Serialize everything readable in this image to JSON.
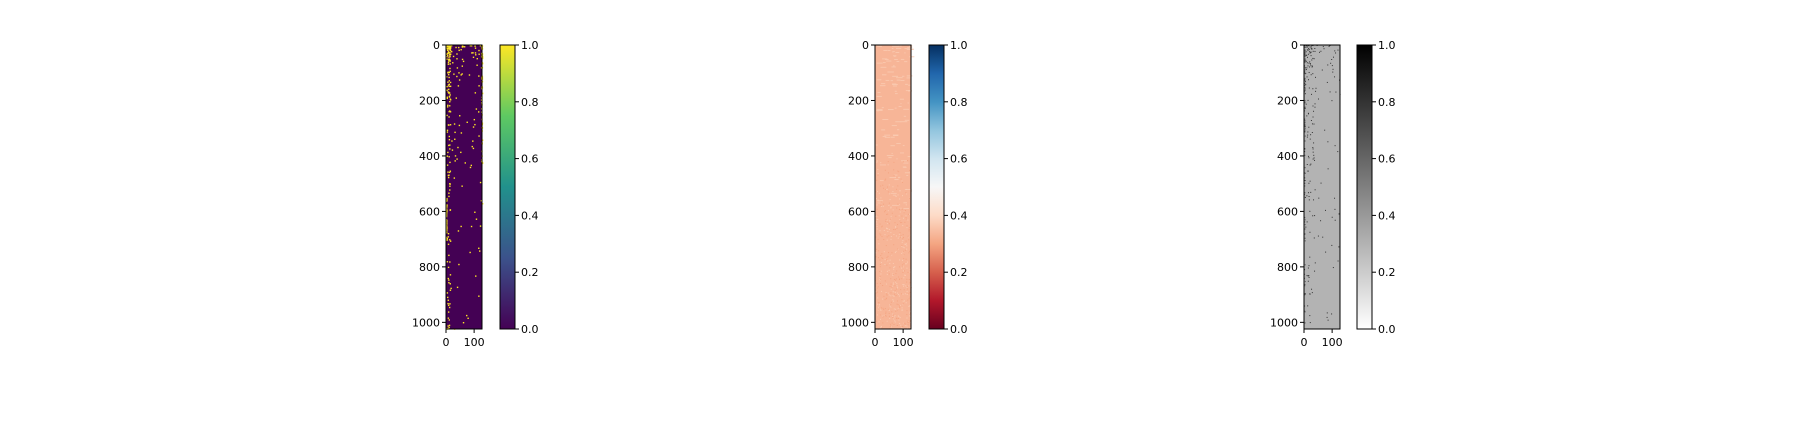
{
  "chart_data": [
    {
      "type": "heatmap",
      "colormap": "viridis",
      "colormap_stops": [
        "#440154",
        "#3b528b",
        "#21918c",
        "#5ec962",
        "#fde725"
      ],
      "background_value": 0.0,
      "dot_value": 1.0,
      "x_ticks": [
        "0",
        "100"
      ],
      "x_tick_values": [
        0,
        100
      ],
      "xlim": [
        0,
        128
      ],
      "y_ticks": [
        "0",
        "200",
        "400",
        "600",
        "800",
        "1000"
      ],
      "y_tick_values": [
        0,
        200,
        400,
        600,
        800,
        1000
      ],
      "ylim": [
        1024,
        0
      ],
      "colorbar_ticks": [
        "0.0",
        "0.2",
        "0.4",
        "0.6",
        "0.8",
        "1.0"
      ],
      "colorbar_range": [
        0,
        1
      ],
      "pattern": "sparse bright (1.0) dots on a 0.0 background, dense near top and along columns 0-10 and 124-128"
    },
    {
      "type": "heatmap",
      "colormap": "RdBu",
      "colormap_stops": [
        "#67001f",
        "#b2182b",
        "#d6604d",
        "#f4a582",
        "#fddbc7",
        "#f7f7f7",
        "#d1e5f0",
        "#92c5de",
        "#4393c3",
        "#2166ac",
        "#053061"
      ],
      "background_value": 0.33,
      "dot_value": 0.3,
      "x_ticks": [
        "0",
        "100"
      ],
      "x_tick_values": [
        0,
        100
      ],
      "xlim": [
        0,
        128
      ],
      "y_ticks": [
        "0",
        "200",
        "400",
        "600",
        "800",
        "1000"
      ],
      "y_tick_values": [
        0,
        200,
        400,
        600,
        800,
        1000
      ],
      "ylim": [
        1024,
        0
      ],
      "colorbar_ticks": [
        "0.0",
        "0.2",
        "0.4",
        "0.6",
        "0.8",
        "1.0"
      ],
      "colorbar_range": [
        0,
        1
      ],
      "pattern": "nearly uniform salmon (~0.33) field with lighter stripes near top and faint noise toward bottom"
    },
    {
      "type": "heatmap",
      "colormap": "Greys",
      "colormap_stops": [
        "#ffffff",
        "#000000"
      ],
      "background_value": 0.3,
      "dot_value": 0.8,
      "x_ticks": [
        "0",
        "100"
      ],
      "x_tick_values": [
        0,
        100
      ],
      "xlim": [
        0,
        128
      ],
      "y_ticks": [
        "0",
        "200",
        "400",
        "600",
        "800",
        "1000"
      ],
      "y_tick_values": [
        0,
        200,
        400,
        600,
        800,
        1000
      ],
      "ylim": [
        1024,
        0
      ],
      "colorbar_ticks": [
        "0.0",
        "0.2",
        "0.4",
        "0.6",
        "0.8",
        "1.0"
      ],
      "colorbar_range": [
        0,
        1
      ],
      "pattern": "light grey (~0.3) field with sparse darker dots concentrated near top-left"
    }
  ]
}
